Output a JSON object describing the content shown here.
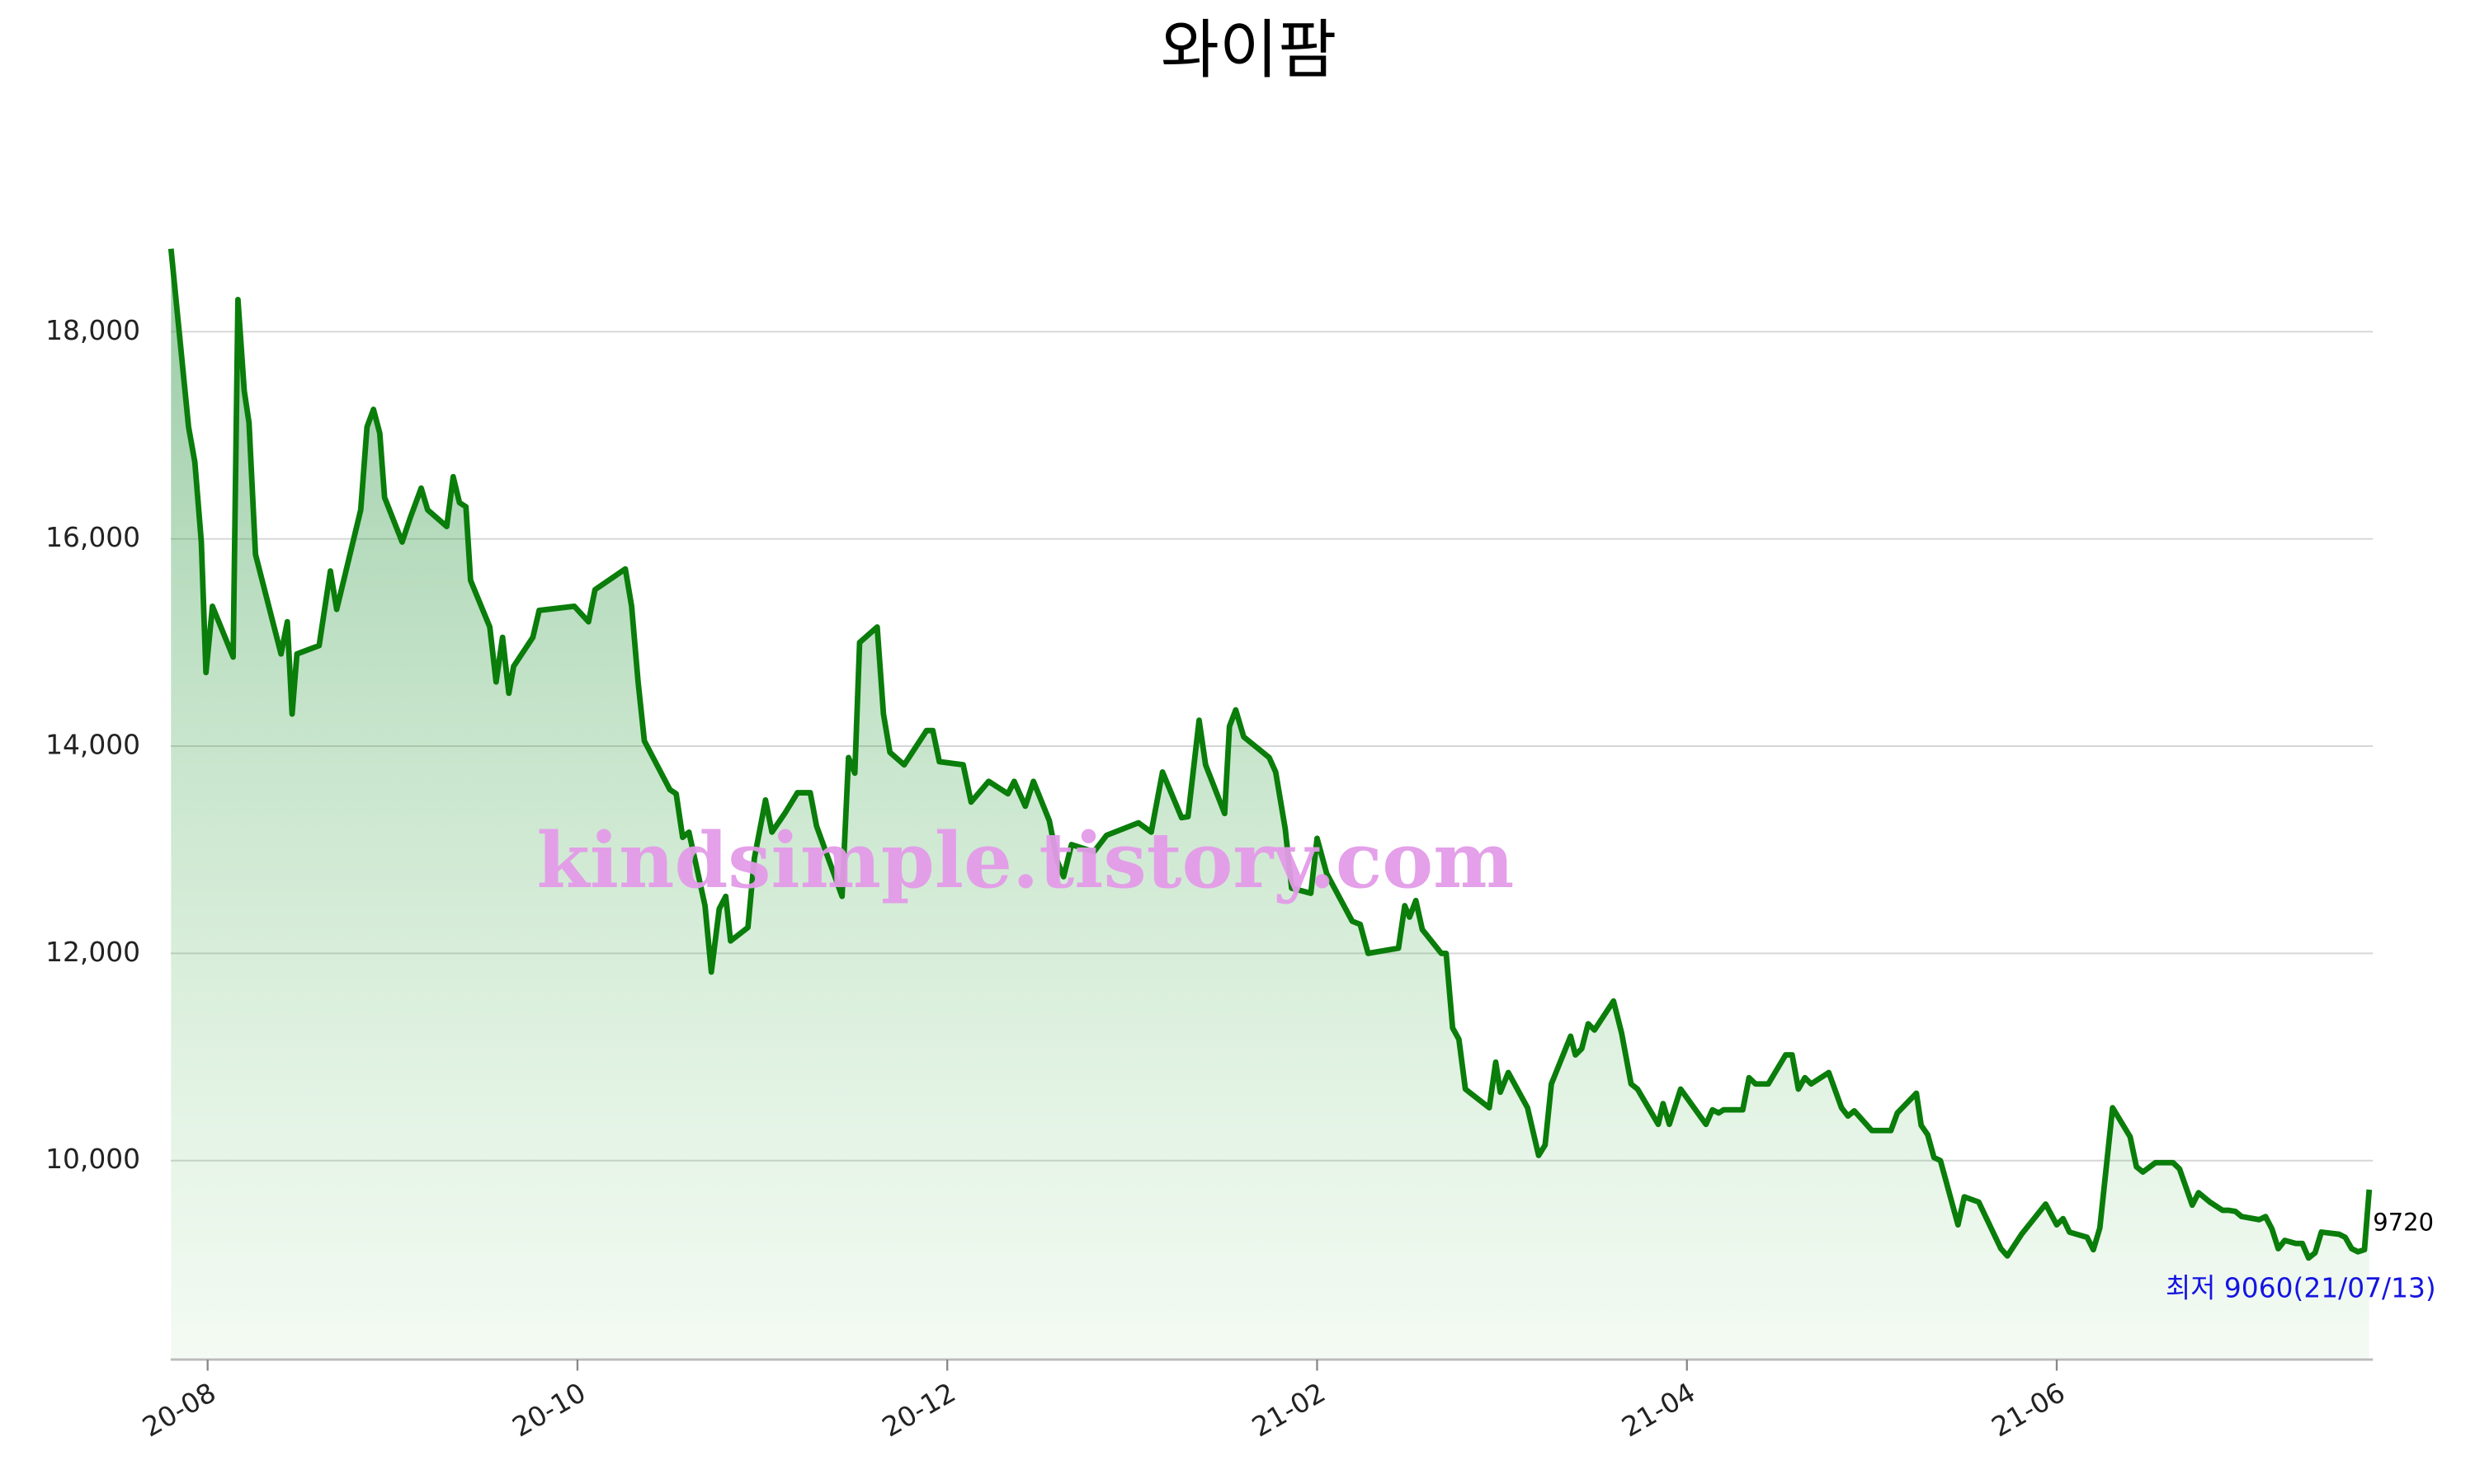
{
  "chart_data": {
    "type": "area-line",
    "title": "와이팜",
    "color": "#0a7d0a",
    "grid": true,
    "x": [
      7.802,
      7.897,
      7.931,
      7.966,
      7.991,
      8.026,
      8.138,
      8.164,
      8.198,
      8.224,
      8.259,
      8.397,
      8.431,
      8.457,
      8.483,
      8.603,
      8.664,
      8.698,
      8.828,
      8.862,
      8.897,
      8.931,
      8.957,
      9.052,
      9.095,
      9.155,
      9.19,
      9.293,
      9.328,
      9.362,
      9.397,
      9.422,
      9.526,
      9.56,
      9.595,
      9.629,
      9.655,
      9.759,
      9.793,
      9.983,
      10.06,
      10.095,
      10.259,
      10.293,
      10.328,
      10.362,
      10.5,
      10.534,
      10.569,
      10.603,
      10.69,
      10.724,
      10.767,
      10.802,
      10.828,
      10.922,
      10.957,
      11.017,
      11.052,
      11.121,
      11.19,
      11.259,
      11.293,
      11.362,
      11.431,
      11.466,
      11.5,
      11.526,
      11.621,
      11.655,
      11.69,
      11.767,
      11.888,
      11.922,
      11.957,
      12.086,
      12.129,
      12.224,
      12.328,
      12.362,
      12.422,
      12.466,
      12.552,
      12.595,
      12.629,
      12.672,
      12.793,
      12.862,
      13.034,
      13.103,
      13.164,
      13.267,
      13.302,
      13.362,
      13.397,
      13.5,
      13.526,
      13.56,
      13.603,
      13.741,
      13.776,
      13.828,
      13.862,
      13.966,
      14,
      14.052,
      14.19,
      14.233,
      14.276,
      14.44,
      14.474,
      14.5,
      14.534,
      14.569,
      14.672,
      14.698,
      14.733,
      14.767,
      14.802,
      14.931,
      14.966,
      14.991,
      15.034,
      15.138,
      15.198,
      15.233,
      15.267,
      15.371,
      15.397,
      15.431,
      15.466,
      15.5,
      15.603,
      15.647,
      15.698,
      15.733,
      15.845,
      15.871,
      15.905,
      15.966,
      16.103,
      16.138,
      16.172,
      16.198,
      16.302,
      16.336,
      16.371,
      16.44,
      16.534,
      16.569,
      16.603,
      16.638,
      16.672,
      16.767,
      16.836,
      16.871,
      16.905,
      17,
      17.103,
      17.138,
      17.241,
      17.267,
      17.302,
      17.336,
      17.371,
      17.466,
      17.5,
      17.578,
      17.698,
      17.733,
      17.81,
      17.94,
      18,
      18.034,
      18.069,
      18.164,
      18.198,
      18.233,
      18.302,
      18.397,
      18.431,
      18.466,
      18.534,
      18.629,
      18.664,
      18.733,
      18.767,
      18.828,
      18.897,
      18.931,
      18.966,
      19,
      19.095,
      19.129,
      19.164,
      19.198,
      19.233,
      19.293,
      19.328,
      19.362,
      19.397,
      19.431,
      19.526,
      19.56,
      19.595,
      19.629,
      19.664,
      19.69
    ],
    "values": [
      18800,
      17080,
      16740,
      15970,
      14710,
      15350,
      14860,
      18310,
      17430,
      17120,
      15850,
      14890,
      15200,
      14310,
      14890,
      14970,
      15690,
      15320,
      16280,
      17080,
      17250,
      17020,
      16400,
      15970,
      16200,
      16490,
      16280,
      16120,
      16600,
      16350,
      16310,
      15600,
      15150,
      14620,
      15050,
      14510,
      14770,
      15050,
      15310,
      15350,
      15200,
      15510,
      15710,
      15350,
      14620,
      14050,
      13580,
      13540,
      13120,
      13170,
      12460,
      11820,
      12430,
      12550,
      12120,
      12250,
      12920,
      13480,
      13170,
      13350,
      13550,
      13550,
      13230,
      12890,
      12550,
      13890,
      13740,
      15000,
      15150,
      14310,
      13940,
      13820,
      14150,
      14150,
      13850,
      13820,
      13460,
      13660,
      13540,
      13660,
      13420,
      13660,
      13280,
      12890,
      12740,
      13050,
      12980,
      13140,
      13260,
      13170,
      13750,
      13310,
      13320,
      14250,
      13820,
      13350,
      14190,
      14350,
      14090,
      13890,
      13750,
      13200,
      12630,
      12580,
      13110,
      12770,
      12310,
      12280,
      12000,
      12050,
      12460,
      12350,
      12510,
      12230,
      12000,
      12000,
      11280,
      11170,
      10690,
      10510,
      10950,
      10660,
      10850,
      10510,
      10050,
      10150,
      10740,
      11200,
      11020,
      11080,
      11320,
      11260,
      11540,
      11230,
      10740,
      10690,
      10350,
      10550,
      10350,
      10690,
      10350,
      10490,
      10460,
      10490,
      10490,
      10800,
      10740,
      10740,
      11020,
      11020,
      10690,
      10800,
      10740,
      10850,
      10510,
      10430,
      10480,
      10290,
      10290,
      10460,
      10650,
      10340,
      10250,
      10030,
      10000,
      9380,
      9650,
      9600,
      9150,
      9080,
      9290,
      9580,
      9380,
      9440,
      9310,
      9260,
      9140,
      9350,
      10510,
      10230,
      9940,
      9890,
      9980,
      9980,
      9920,
      9570,
      9690,
      9600,
      9520,
      9520,
      9510,
      9460,
      9430,
      9460,
      9340,
      9150,
      9230,
      9200,
      9200,
      9060,
      9110,
      9310,
      9290,
      9260,
      9150,
      9120,
      9140,
      9720
    ],
    "xlim": [
      7.8,
      19.71
    ],
    "xticks": [
      {
        "value": 8,
        "label": "20-08"
      },
      {
        "value": 10,
        "label": "20-10"
      },
      {
        "value": 12,
        "label": "20-12"
      },
      {
        "value": 14,
        "label": "21-02"
      },
      {
        "value": 16,
        "label": "21-04"
      },
      {
        "value": 18,
        "label": "21-06"
      }
    ],
    "ylim": [
      8080,
      19200
    ],
    "yticks": [
      {
        "value": 10000,
        "label": "10,000"
      },
      {
        "value": 12000,
        "label": "12,000"
      },
      {
        "value": 14000,
        "label": "14,000"
      },
      {
        "value": 16000,
        "label": "16,000"
      },
      {
        "value": 18000,
        "label": "18,000"
      }
    ],
    "annotations": [
      {
        "text": "9720",
        "color": "#000000"
      },
      {
        "text": "최저 9060(21/07/13)",
        "color": "#1515e0"
      }
    ],
    "watermark": "kindsimple.tistory.com"
  }
}
